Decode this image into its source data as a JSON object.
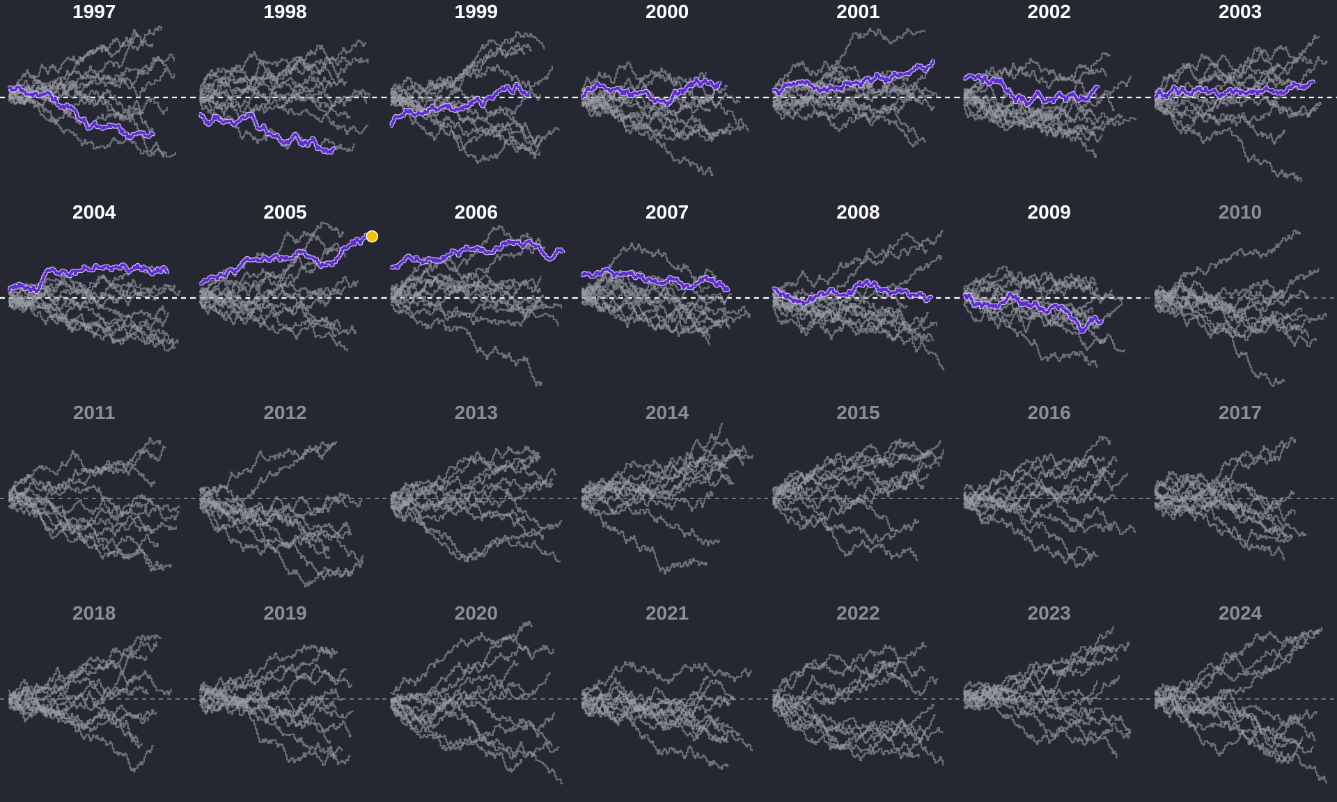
{
  "chart_data": {
    "type": "line",
    "layout": "small-multiples",
    "title": "",
    "xlabel": "",
    "ylabel": "",
    "colors": {
      "background": "#252833",
      "title_active": "#ffffff",
      "title_inactive": "#8c8e96",
      "baseline_active": "#ffffff",
      "baseline_inactive": "#8f919a",
      "background_series": "#9c9ea6",
      "highlight_series": "#5f2ccf",
      "highlight_outline": "#d9ccff",
      "end_marker": "#f2c200"
    },
    "panels": [
      {
        "label": "1997",
        "active": true,
        "highlight": {
          "start": 0.4,
          "end": -1.5,
          "duration": 0.84
        },
        "end_marker": false
      },
      {
        "label": "1998",
        "active": true,
        "highlight": {
          "start": -0.7,
          "end": -2.2,
          "duration": 0.78
        },
        "end_marker": false
      },
      {
        "label": "1999",
        "active": true,
        "highlight": {
          "start": -1.2,
          "end": 0.2,
          "duration": 0.8
        },
        "end_marker": false
      },
      {
        "label": "2000",
        "active": true,
        "highlight": {
          "start": 0.0,
          "end": 0.7,
          "duration": 0.8
        },
        "end_marker": false
      },
      {
        "label": "2001",
        "active": true,
        "highlight": {
          "start": 0.3,
          "end": 1.6,
          "duration": 0.93
        },
        "end_marker": false
      },
      {
        "label": "2002",
        "active": true,
        "highlight": {
          "start": 0.8,
          "end": 0.4,
          "duration": 0.78
        },
        "end_marker": false
      },
      {
        "label": "2003",
        "active": true,
        "highlight": {
          "start": 0.0,
          "end": 0.6,
          "duration": 0.92
        },
        "end_marker": false
      },
      {
        "label": "2004",
        "active": true,
        "highlight": {
          "start": 0.3,
          "end": 1.0,
          "duration": 0.92
        },
        "end_marker": false
      },
      {
        "label": "2005",
        "active": true,
        "highlight": {
          "start": 0.6,
          "end": 2.6,
          "duration": 1.0
        },
        "end_marker": true
      },
      {
        "label": "2006",
        "active": true,
        "highlight": {
          "start": 1.3,
          "end": 1.9,
          "duration": 1.0
        },
        "end_marker": false
      },
      {
        "label": "2007",
        "active": true,
        "highlight": {
          "start": 1.0,
          "end": 0.4,
          "duration": 0.85
        },
        "end_marker": false
      },
      {
        "label": "2008",
        "active": true,
        "highlight": {
          "start": 0.4,
          "end": 0.0,
          "duration": 0.92
        },
        "end_marker": false
      },
      {
        "label": "2009",
        "active": true,
        "highlight": {
          "start": 0.1,
          "end": -0.9,
          "duration": 0.8
        },
        "end_marker": false
      },
      {
        "label": "2010",
        "active": false,
        "highlight": null,
        "end_marker": false
      },
      {
        "label": "2011",
        "active": false,
        "highlight": null,
        "end_marker": false
      },
      {
        "label": "2012",
        "active": false,
        "highlight": null,
        "end_marker": false
      },
      {
        "label": "2013",
        "active": false,
        "highlight": null,
        "end_marker": false
      },
      {
        "label": "2014",
        "active": false,
        "highlight": null,
        "end_marker": false
      },
      {
        "label": "2015",
        "active": false,
        "highlight": null,
        "end_marker": false
      },
      {
        "label": "2016",
        "active": false,
        "highlight": null,
        "end_marker": false
      },
      {
        "label": "2017",
        "active": false,
        "highlight": null,
        "end_marker": false
      },
      {
        "label": "2018",
        "active": false,
        "highlight": null,
        "end_marker": false
      },
      {
        "label": "2019",
        "active": false,
        "highlight": null,
        "end_marker": false
      },
      {
        "label": "2020",
        "active": false,
        "highlight": null,
        "end_marker": false
      },
      {
        "label": "2021",
        "active": false,
        "highlight": null,
        "end_marker": false
      },
      {
        "label": "2022",
        "active": false,
        "highlight": null,
        "end_marker": false
      },
      {
        "label": "2023",
        "active": false,
        "highlight": null,
        "end_marker": false
      },
      {
        "label": "2024",
        "active": false,
        "highlight": null,
        "end_marker": false
      }
    ]
  }
}
